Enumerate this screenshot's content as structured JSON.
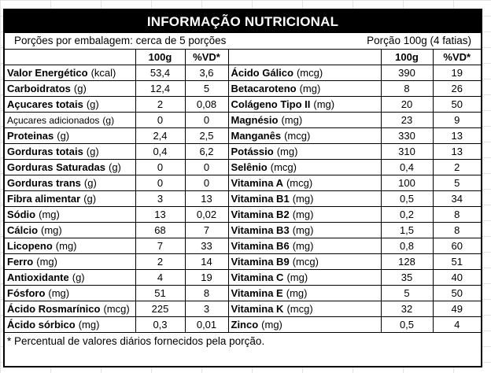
{
  "title": "INFORMAÇÃO NUTRICIONAL",
  "servings_per_package": "Porções por embalagem: cerca de 5 porções",
  "serving_size": "Porção 100g (4 fatias)",
  "col_headers": {
    "qty": "100g",
    "vd": "%VD*"
  },
  "left_rows": [
    {
      "name": "Valor Energético",
      "unit": "(kcal)",
      "qty": "53,4",
      "vd": "3,6",
      "style": "bold"
    },
    {
      "name": "Carboidratos",
      "unit": "(g)",
      "qty": "12,4",
      "vd": "5",
      "style": "bold"
    },
    {
      "name": "Açucares totais",
      "unit": "(g)",
      "qty": "2",
      "vd": "0,08",
      "style": "bold"
    },
    {
      "name": "Açucares adicionados",
      "unit": "(g)",
      "qty": "0",
      "vd": "0",
      "style": "sub"
    },
    {
      "name": "Proteinas",
      "unit": "(g)",
      "qty": "2,4",
      "vd": "2,5",
      "style": "bold"
    },
    {
      "name": "Gorduras totais",
      "unit": "(g)",
      "qty": "0,4",
      "vd": "6,2",
      "style": "bold"
    },
    {
      "name": "Gorduras Saturadas",
      "unit": "(g)",
      "qty": "0",
      "vd": "0",
      "style": "subbold"
    },
    {
      "name": "Gorduras trans",
      "unit": "(g)",
      "qty": "0",
      "vd": "0",
      "style": "subbold"
    },
    {
      "name": "Fibra alimentar",
      "unit": "(g)",
      "qty": "3",
      "vd": "13",
      "style": "bold"
    },
    {
      "name": "Sódio",
      "unit": "(mg)",
      "qty": "13",
      "vd": "0,02",
      "style": "bold"
    },
    {
      "name": "Cálcio",
      "unit": "(mg)",
      "qty": "68",
      "vd": "7",
      "style": "bold"
    },
    {
      "name": "Licopeno",
      "unit": "(mg)",
      "qty": "7",
      "vd": "33",
      "style": "bold"
    },
    {
      "name": "Ferro",
      "unit": "(mg)",
      "qty": "2",
      "vd": "14",
      "style": "bold"
    },
    {
      "name": "Antioxidante",
      "unit": "(g)",
      "qty": "4",
      "vd": "19",
      "style": "bold"
    },
    {
      "name": "Fósforo",
      "unit": "(mg)",
      "qty": "51",
      "vd": "8",
      "style": "bold"
    },
    {
      "name": "Ácido Rosmarínico",
      "unit": "(mcg)",
      "qty": "225",
      "vd": "3",
      "style": "bold"
    },
    {
      "name": "Ácido sórbico",
      "unit": "(mg)",
      "qty": "0,3",
      "vd": "0,01",
      "style": "bold"
    }
  ],
  "right_rows": [
    {
      "name": "Ácido Gálico",
      "unit": "(mcg)",
      "qty": "390",
      "vd": "19"
    },
    {
      "name": "Betacaroteno",
      "unit": "(mg)",
      "qty": "8",
      "vd": "26"
    },
    {
      "name": "Colágeno Tipo II",
      "unit": "(mg)",
      "qty": "20",
      "vd": "50"
    },
    {
      "name": "Magnésio",
      "unit": "(mg)",
      "qty": "23",
      "vd": "9"
    },
    {
      "name": "Manganês",
      "unit": "(mcg)",
      "qty": "330",
      "vd": "13"
    },
    {
      "name": "Potássio",
      "unit": "(mg)",
      "qty": "310",
      "vd": "13"
    },
    {
      "name": "Selênio",
      "unit": "(mcg)",
      "qty": "0,4",
      "vd": "2"
    },
    {
      "name": "Vitamina A",
      "unit": "(mcg)",
      "qty": "100",
      "vd": "5"
    },
    {
      "name": "Vitamina B1",
      "unit": "(mg)",
      "qty": "0,5",
      "vd": "34"
    },
    {
      "name": "Vitamina B2",
      "unit": "(mg)",
      "qty": "0,2",
      "vd": "8"
    },
    {
      "name": "Vitamina B3",
      "unit": "(mg)",
      "qty": "1,5",
      "vd": "8"
    },
    {
      "name": "Vitamina B6",
      "unit": "(mg)",
      "qty": "0,8",
      "vd": "60"
    },
    {
      "name": "Vitamina B9",
      "unit": "(mcg)",
      "qty": "128",
      "vd": "51"
    },
    {
      "name": "Vitamina C",
      "unit": "(mg)",
      "qty": "35",
      "vd": "40"
    },
    {
      "name": "Vitamina E",
      "unit": "(mg)",
      "qty": "5",
      "vd": "50"
    },
    {
      "name": "Vitamina K",
      "unit": "(mcg)",
      "qty": "32",
      "vd": "49"
    },
    {
      "name": "Zinco",
      "unit": "(mg)",
      "qty": "0,5",
      "vd": "4"
    }
  ],
  "footnote": "* Percentual de valores diários fornecidos pela porção."
}
